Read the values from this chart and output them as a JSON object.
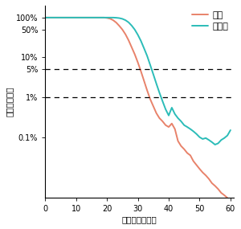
{
  "xlabel": "調査回数（月）",
  "ylabel": "推定残存確率",
  "legend_tokai": "東海",
  "legend_jonanjima": "城南島",
  "color_tokai": "#E8826A",
  "color_jonanjima": "#2BBCB8",
  "xlim": [
    0,
    61
  ],
  "ylim_bottom": 3e-05,
  "ylim_top": 2.0,
  "xticks": [
    0,
    10,
    20,
    30,
    40,
    50,
    60
  ],
  "yticks": [
    0.001,
    0.01,
    0.05,
    0.1,
    0.5,
    1.0
  ],
  "ytick_labels": [
    "0.1%",
    "1%",
    "5%",
    "10%",
    "50%",
    "100%"
  ],
  "hlines": [
    0.05,
    0.01
  ],
  "tokai_x": [
    0,
    19,
    20,
    21,
    22,
    23,
    24,
    25,
    26,
    27,
    28,
    29,
    30,
    31,
    32,
    33,
    34,
    35,
    36,
    37,
    38,
    39,
    40,
    41,
    42,
    43,
    44,
    45,
    46,
    47,
    48,
    49,
    50,
    51,
    52,
    53,
    54,
    55,
    56,
    57,
    58,
    59,
    60
  ],
  "tokai_y": [
    1.0,
    1.0,
    0.98,
    0.94,
    0.86,
    0.75,
    0.62,
    0.5,
    0.38,
    0.27,
    0.18,
    0.12,
    0.075,
    0.045,
    0.026,
    0.015,
    0.009,
    0.006,
    0.004,
    0.003,
    0.0025,
    0.002,
    0.0018,
    0.0022,
    0.0016,
    0.0008,
    0.0006,
    0.0005,
    0.0004,
    0.00035,
    0.00025,
    0.0002,
    0.00016,
    0.00013,
    0.00011,
    9e-05,
    7e-05,
    6e-05,
    5e-05,
    4e-05,
    3.5e-05,
    3e-05,
    2.5e-05
  ],
  "jonanjima_x": [
    0,
    22,
    23,
    24,
    25,
    26,
    27,
    28,
    29,
    30,
    31,
    32,
    33,
    34,
    35,
    36,
    37,
    38,
    39,
    40,
    41,
    42,
    43,
    44,
    45,
    46,
    47,
    48,
    49,
    50,
    51,
    52,
    53,
    54,
    55,
    56,
    57,
    58,
    59,
    60
  ],
  "jonanjima_y": [
    1.0,
    1.0,
    0.99,
    0.97,
    0.93,
    0.86,
    0.76,
    0.63,
    0.5,
    0.37,
    0.26,
    0.17,
    0.11,
    0.065,
    0.038,
    0.022,
    0.013,
    0.008,
    0.005,
    0.0035,
    0.0055,
    0.0038,
    0.003,
    0.0025,
    0.002,
    0.0018,
    0.0016,
    0.0014,
    0.0012,
    0.001,
    0.0009,
    0.00095,
    0.00085,
    0.00075,
    0.00065,
    0.0007,
    0.00085,
    0.00095,
    0.0011,
    0.0015
  ]
}
